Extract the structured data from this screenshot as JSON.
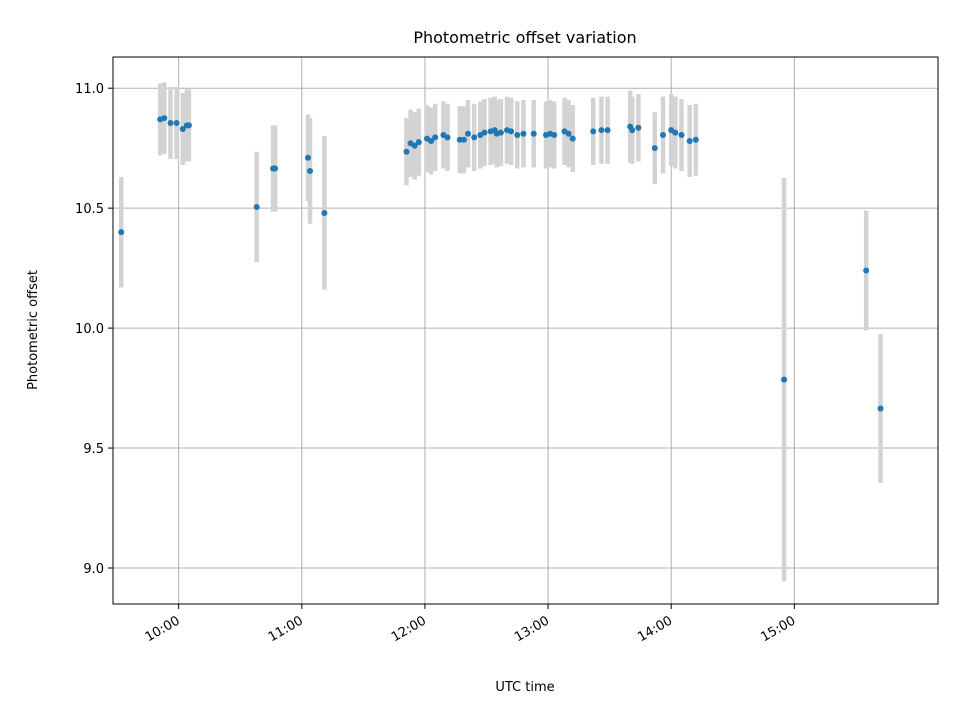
{
  "chart_data": {
    "type": "scatter",
    "title": "Photometric offset variation",
    "xlabel": "UTC time",
    "ylabel": "Photometric offset",
    "x_unit": "UTC time (HH:MM)",
    "xlim": [
      "09:28",
      "16:10"
    ],
    "ylim": [
      8.85,
      11.13
    ],
    "grid": true,
    "x_ticks": [
      "10:00",
      "11:00",
      "12:00",
      "13:00",
      "14:00",
      "15:00"
    ],
    "y_ticks": [
      9.0,
      9.5,
      10.0,
      10.5,
      11.0
    ],
    "y_tick_labels": [
      "9.0",
      "9.5",
      "10.0",
      "10.5",
      "11.0"
    ],
    "colors": {
      "points": "#1f77b4",
      "errorbars": "#d3d3d3",
      "grid": "#b0b0b0"
    },
    "series": [
      {
        "x": [
          "09:32",
          "09:51",
          "09:53",
          "09:56",
          "09:59",
          "10:02",
          "10:04",
          "10:05",
          "10:38",
          "10:46",
          "10:47",
          "11:03",
          "11:04",
          "11:11",
          "11:51",
          "11:53",
          "11:55",
          "11:57",
          "12:01",
          "12:03",
          "12:05",
          "12:09",
          "12:11",
          "12:17",
          "12:19",
          "12:21",
          "12:24",
          "12:27",
          "12:29",
          "12:32",
          "12:34",
          "12:35",
          "12:37",
          "12:40",
          "12:42",
          "12:45",
          "12:48",
          "12:53",
          "12:59",
          "13:01",
          "13:03",
          "13:08",
          "13:10",
          "13:12",
          "13:22",
          "13:26",
          "13:29",
          "13:40",
          "13:41",
          "13:44",
          "13:52",
          "13:56",
          "14:00",
          "14:02",
          "14:05",
          "14:09",
          "14:12",
          "14:55",
          "15:35",
          "15:42"
        ],
        "y": [
          10.4,
          10.87,
          10.875,
          10.855,
          10.855,
          10.83,
          10.845,
          10.845,
          10.505,
          10.665,
          10.665,
          10.71,
          10.655,
          10.48,
          10.735,
          10.77,
          10.76,
          10.775,
          10.79,
          10.78,
          10.795,
          10.805,
          10.795,
          10.785,
          10.785,
          10.81,
          10.795,
          10.805,
          10.815,
          10.82,
          10.825,
          10.81,
          10.815,
          10.825,
          10.82,
          10.805,
          10.81,
          10.81,
          10.805,
          10.81,
          10.805,
          10.82,
          10.81,
          10.79,
          10.82,
          10.825,
          10.825,
          10.84,
          10.825,
          10.835,
          10.75,
          10.805,
          10.825,
          10.815,
          10.805,
          10.78,
          10.785,
          9.785,
          10.24,
          9.665
        ],
        "err": [
          0.23,
          0.15,
          0.15,
          0.15,
          0.15,
          0.15,
          0.15,
          0.15,
          0.23,
          0.18,
          0.18,
          0.18,
          0.22,
          0.32,
          0.14,
          0.14,
          0.14,
          0.14,
          0.14,
          0.14,
          0.14,
          0.14,
          0.14,
          0.14,
          0.14,
          0.14,
          0.14,
          0.14,
          0.14,
          0.14,
          0.14,
          0.14,
          0.14,
          0.14,
          0.14,
          0.14,
          0.14,
          0.14,
          0.14,
          0.14,
          0.14,
          0.14,
          0.14,
          0.14,
          0.14,
          0.14,
          0.14,
          0.15,
          0.14,
          0.14,
          0.15,
          0.16,
          0.15,
          0.15,
          0.15,
          0.15,
          0.15,
          0.84,
          0.25,
          0.31
        ]
      }
    ]
  }
}
